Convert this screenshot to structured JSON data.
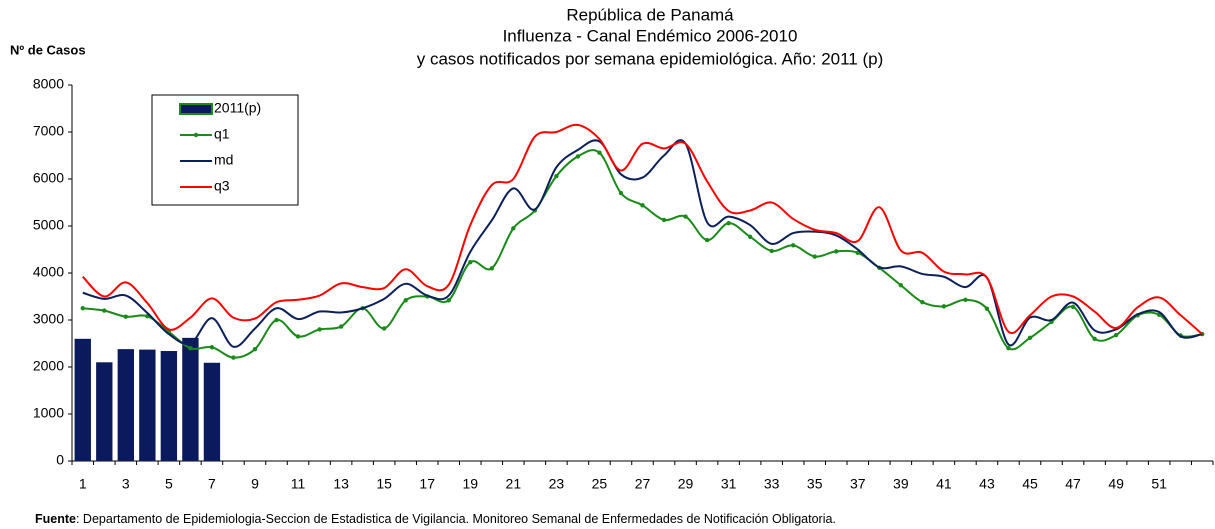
{
  "chart_data": {
    "type": "combo",
    "title": [
      "República de Panamá",
      "Influenza - Canal Endémico  2006-2010",
      "y casos notificados por semana epidemiológica.  Año: 2011 (p)"
    ],
    "y_label": "Nº de Casos",
    "source_label": "Fuente",
    "source": ": Departamento de Epidemiologia-Seccion de Estadistica de Vigilancia. Monitoreo Semanal de Enfermedades de Notificación Obligatoria.",
    "categories": [
      "1",
      null,
      "3",
      null,
      "5",
      null,
      "7",
      null,
      "9",
      null,
      "11",
      null,
      "13",
      null,
      "15",
      null,
      "17",
      null,
      "19",
      null,
      "21",
      null,
      "23",
      null,
      "25",
      null,
      "27",
      null,
      "29",
      null,
      "31",
      null,
      "33",
      null,
      "35",
      null,
      "37",
      null,
      "39",
      null,
      "41",
      null,
      "43",
      null,
      "45",
      null,
      "47",
      null,
      "49",
      null,
      "51",
      null,
      null
    ],
    "ylim": [
      0,
      8000
    ],
    "yticks": [
      0,
      1000,
      2000,
      3000,
      4000,
      5000,
      6000,
      7000,
      8000
    ],
    "grid": false,
    "legend": "upper left",
    "series": [
      {
        "name": "2011(p)",
        "type": "bar",
        "color": "#0b1a5c",
        "edge": "#1a8a1a",
        "values": [
          2600,
          2100,
          2380,
          2370,
          2340,
          2620,
          2090,
          null,
          null,
          null,
          null,
          null,
          null,
          null,
          null,
          null,
          null,
          null,
          null,
          null,
          null,
          null,
          null,
          null,
          null,
          null,
          null,
          null,
          null,
          null,
          null,
          null,
          null,
          null,
          null,
          null,
          null,
          null,
          null,
          null,
          null,
          null,
          null,
          null,
          null,
          null,
          null,
          null,
          null,
          null,
          null,
          null,
          null
        ]
      },
      {
        "name": "q1",
        "type": "line",
        "color": "#1a8a1a",
        "markers": true,
        "values": [
          3250,
          3200,
          3070,
          3080,
          2750,
          2400,
          2420,
          2200,
          2380,
          3000,
          2650,
          2800,
          2860,
          3250,
          2820,
          3420,
          3500,
          3420,
          4230,
          4100,
          4950,
          5330,
          6060,
          6480,
          6560,
          5700,
          5440,
          5130,
          5200,
          4700,
          5060,
          4770,
          4470,
          4590,
          4350,
          4460,
          4430,
          4110,
          3740,
          3380,
          3290,
          3430,
          3240,
          2400,
          2620,
          2960,
          3280,
          2600,
          2680,
          3100,
          3110,
          2670,
          2700
        ]
      },
      {
        "name": "md",
        "type": "line",
        "color": "#0b1f5a",
        "markers": false,
        "values": [
          3580,
          3450,
          3520,
          3150,
          2700,
          2500,
          3040,
          2430,
          2820,
          3250,
          3020,
          3180,
          3160,
          3250,
          3450,
          3770,
          3520,
          3520,
          4450,
          5120,
          5800,
          5350,
          6250,
          6620,
          6800,
          6100,
          6030,
          6500,
          6750,
          5080,
          5200,
          5020,
          4620,
          4850,
          4880,
          4800,
          4500,
          4120,
          4140,
          3980,
          3920,
          3700,
          3900,
          2480,
          3050,
          3000,
          3370,
          2780,
          2800,
          3120,
          3170,
          2650,
          2700
        ]
      },
      {
        "name": "q3",
        "type": "line",
        "color": "#ff0000",
        "markers": false,
        "values": [
          3920,
          3500,
          3800,
          3360,
          2800,
          3050,
          3460,
          3050,
          3030,
          3380,
          3430,
          3520,
          3780,
          3700,
          3680,
          4080,
          3720,
          3750,
          5020,
          5870,
          6000,
          6900,
          7000,
          7150,
          6850,
          6180,
          6750,
          6650,
          6750,
          5950,
          5320,
          5330,
          5500,
          5150,
          4920,
          4850,
          4680,
          5400,
          4480,
          4430,
          4030,
          3970,
          3900,
          2750,
          3100,
          3500,
          3500,
          3180,
          2830,
          3270,
          3480,
          3100,
          2700
        ]
      }
    ]
  }
}
